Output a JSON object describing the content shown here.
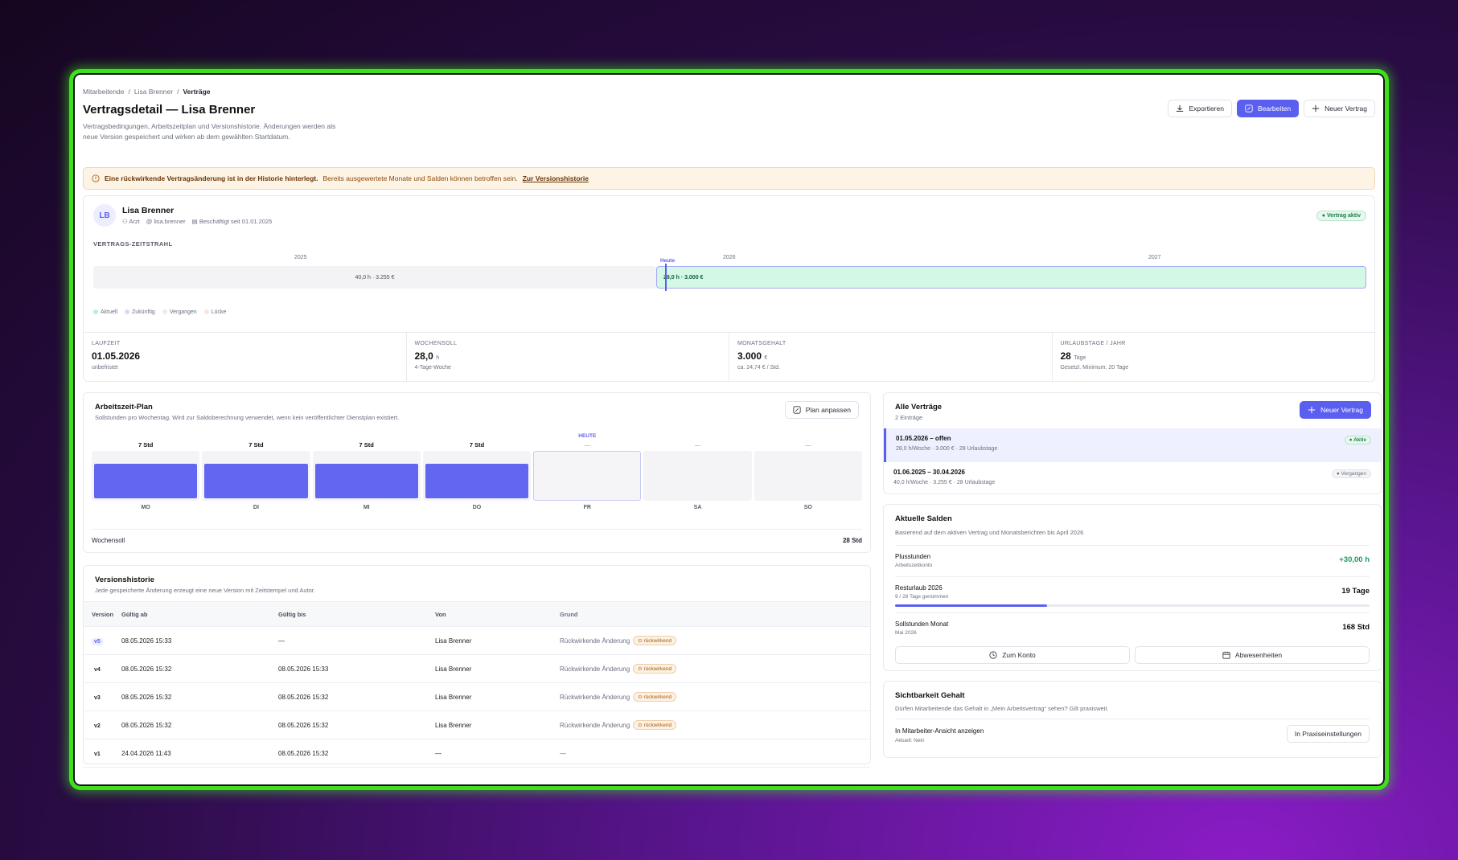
{
  "breadcrumb": [
    "Mitarbeitende",
    "Lisa Brenner",
    "Verträge"
  ],
  "page": {
    "title": "Vertragsdetail — Lisa Brenner",
    "subtitle": "Vertragsbedingungen, Arbeitszeitplan und Versionshistorie. Änderungen werden als neue Version gespeichert und wirken ab dem gewählten Startdatum."
  },
  "actions": {
    "export": "Exportieren",
    "edit": "Bearbeiten",
    "new_contract": "Neuer Vertrag"
  },
  "alert": {
    "bold": "Eine rückwirkende Vertragsänderung ist in der Historie hinterlegt.",
    "text": "Bereits ausgewertete Monate und Salden können betroffen sein.",
    "link": "Zur Versionshistorie"
  },
  "person": {
    "initials": "LB",
    "name": "Lisa Brenner",
    "role": "Arzt",
    "user": "lisa.brenner",
    "since": "Beschäftigt seit 01.01.2025",
    "status": "Vertrag aktiv"
  },
  "timeline": {
    "label": "VERTRAGS-ZEITSTRAHL",
    "years": [
      "2025",
      "2026",
      "2027"
    ],
    "today_label": "Heute",
    "past_segment": "40,0 h · 3.255 €",
    "current_segment": "28,0 h · 3.000 €",
    "legend": [
      {
        "label": "Aktuell",
        "color": "#bfeed6"
      },
      {
        "label": "Zukünftig",
        "color": "#d9daf9"
      },
      {
        "label": "Vergangen",
        "color": "#ececf0"
      },
      {
        "label": "Lücke",
        "color": "#f5e5e5"
      }
    ]
  },
  "stats": [
    {
      "key": "LAUFZEIT",
      "value": "01.05.2026",
      "unit": "",
      "hint": "unbefristet"
    },
    {
      "key": "WOCHENSOLL",
      "value": "28,0",
      "unit": "h",
      "hint": "4-Tage-Woche"
    },
    {
      "key": "MONATSGEHALT",
      "value": "3.000",
      "unit": "€",
      "hint": "ca. 24,74 € / Std."
    },
    {
      "key": "URLAUBSTAGE / JAHR",
      "value": "28",
      "unit": "Tage",
      "hint": "Gesetzl. Minimum: 20 Tage"
    }
  ],
  "plan": {
    "title": "Arbeitszeit-Plan",
    "subtitle": "Sollstunden pro Wochentag. Wird zur Saldoberechnung verwendet, wenn kein veröffentlichter Dienstplan existiert.",
    "button": "Plan anpassen",
    "today_label": "HEUTE",
    "days": [
      {
        "label": "MO",
        "hours": "7 Std",
        "fill": 0.7
      },
      {
        "label": "DI",
        "hours": "7 Std",
        "fill": 0.7
      },
      {
        "label": "MI",
        "hours": "7 Std",
        "fill": 0.7
      },
      {
        "label": "DO",
        "hours": "7 Std",
        "fill": 0.7
      },
      {
        "label": "FR",
        "hours": "—",
        "fill": 0
      },
      {
        "label": "SA",
        "hours": "—",
        "fill": 0
      },
      {
        "label": "SO",
        "hours": "—",
        "fill": 0
      }
    ],
    "footer_label": "Wochensoll",
    "footer_value": "28 Std"
  },
  "history": {
    "title": "Versionshistorie",
    "subtitle": "Jede gespeicherte Änderung erzeugt eine neue Version mit Zeitstempel und Autor.",
    "columns": [
      "Version",
      "Gültig ab",
      "Gültig bis",
      "Von",
      "Grund"
    ],
    "rows": [
      {
        "version": "v5",
        "from": "08.05.2026 15:33",
        "to": "—",
        "by": "Lisa Brenner",
        "reason": "Rückwirkende Änderung",
        "badge": "rückwirkend"
      },
      {
        "version": "v4",
        "from": "08.05.2026 15:32",
        "to": "08.05.2026 15:33",
        "by": "Lisa Brenner",
        "reason": "Rückwirkende Änderung",
        "badge": "rückwirkend"
      },
      {
        "version": "v3",
        "from": "08.05.2026 15:32",
        "to": "08.05.2026 15:32",
        "by": "Lisa Brenner",
        "reason": "Rückwirkende Änderung",
        "badge": "rückwirkend"
      },
      {
        "version": "v2",
        "from": "08.05.2026 15:32",
        "to": "08.05.2026 15:32",
        "by": "Lisa Brenner",
        "reason": "Rückwirkende Änderung",
        "badge": "rückwirkend"
      },
      {
        "version": "v1",
        "from": "24.04.2026 11:43",
        "to": "08.05.2026 15:32",
        "by": "—",
        "reason": "—",
        "badge": ""
      }
    ]
  },
  "contracts": {
    "title": "Alle Verträge",
    "count": "2 Einträge",
    "button": "Neuer Vertrag",
    "items": [
      {
        "title": "01.05.2026 – offen",
        "sub": "28,0 h/Woche · 3.000 € · 28 Urlaubstage",
        "badge": "Aktiv"
      },
      {
        "title": "01.06.2025 – 30.04.2026",
        "sub": "40,0 h/Woche · 3.255 € · 28 Urlaubstage",
        "badge": "Vergangen"
      }
    ]
  },
  "balances": {
    "title": "Aktuelle Salden",
    "subtitle": "Basierend auf dem aktiven Vertrag und Monatsberichten bis April 2026",
    "rows": [
      {
        "name": "Plusstunden",
        "sub": "Arbeitszeitkonto",
        "value": "+30,00 h"
      },
      {
        "name": "Resturlaub 2026",
        "sub": "9 / 28 Tage genommen",
        "value": "19 Tage",
        "progress": 0.32
      },
      {
        "name": "Sollstunden Monat",
        "sub": "Mai 2026",
        "value": "168 Std"
      }
    ],
    "btn_account": "Zum Konto",
    "btn_absences": "Abwesenheiten"
  },
  "visibility": {
    "title": "Sichtbarkeit Gehalt",
    "subtitle": "Dürfen Mitarbeitende das Gehalt in „Mein Arbeitsvertrag“ sehen? Gilt praxisweit.",
    "row_label": "In Mitarbeiter-Ansicht anzeigen",
    "row_sub": "Aktuell: Nein",
    "button": "In Praxiseinstellungen"
  }
}
